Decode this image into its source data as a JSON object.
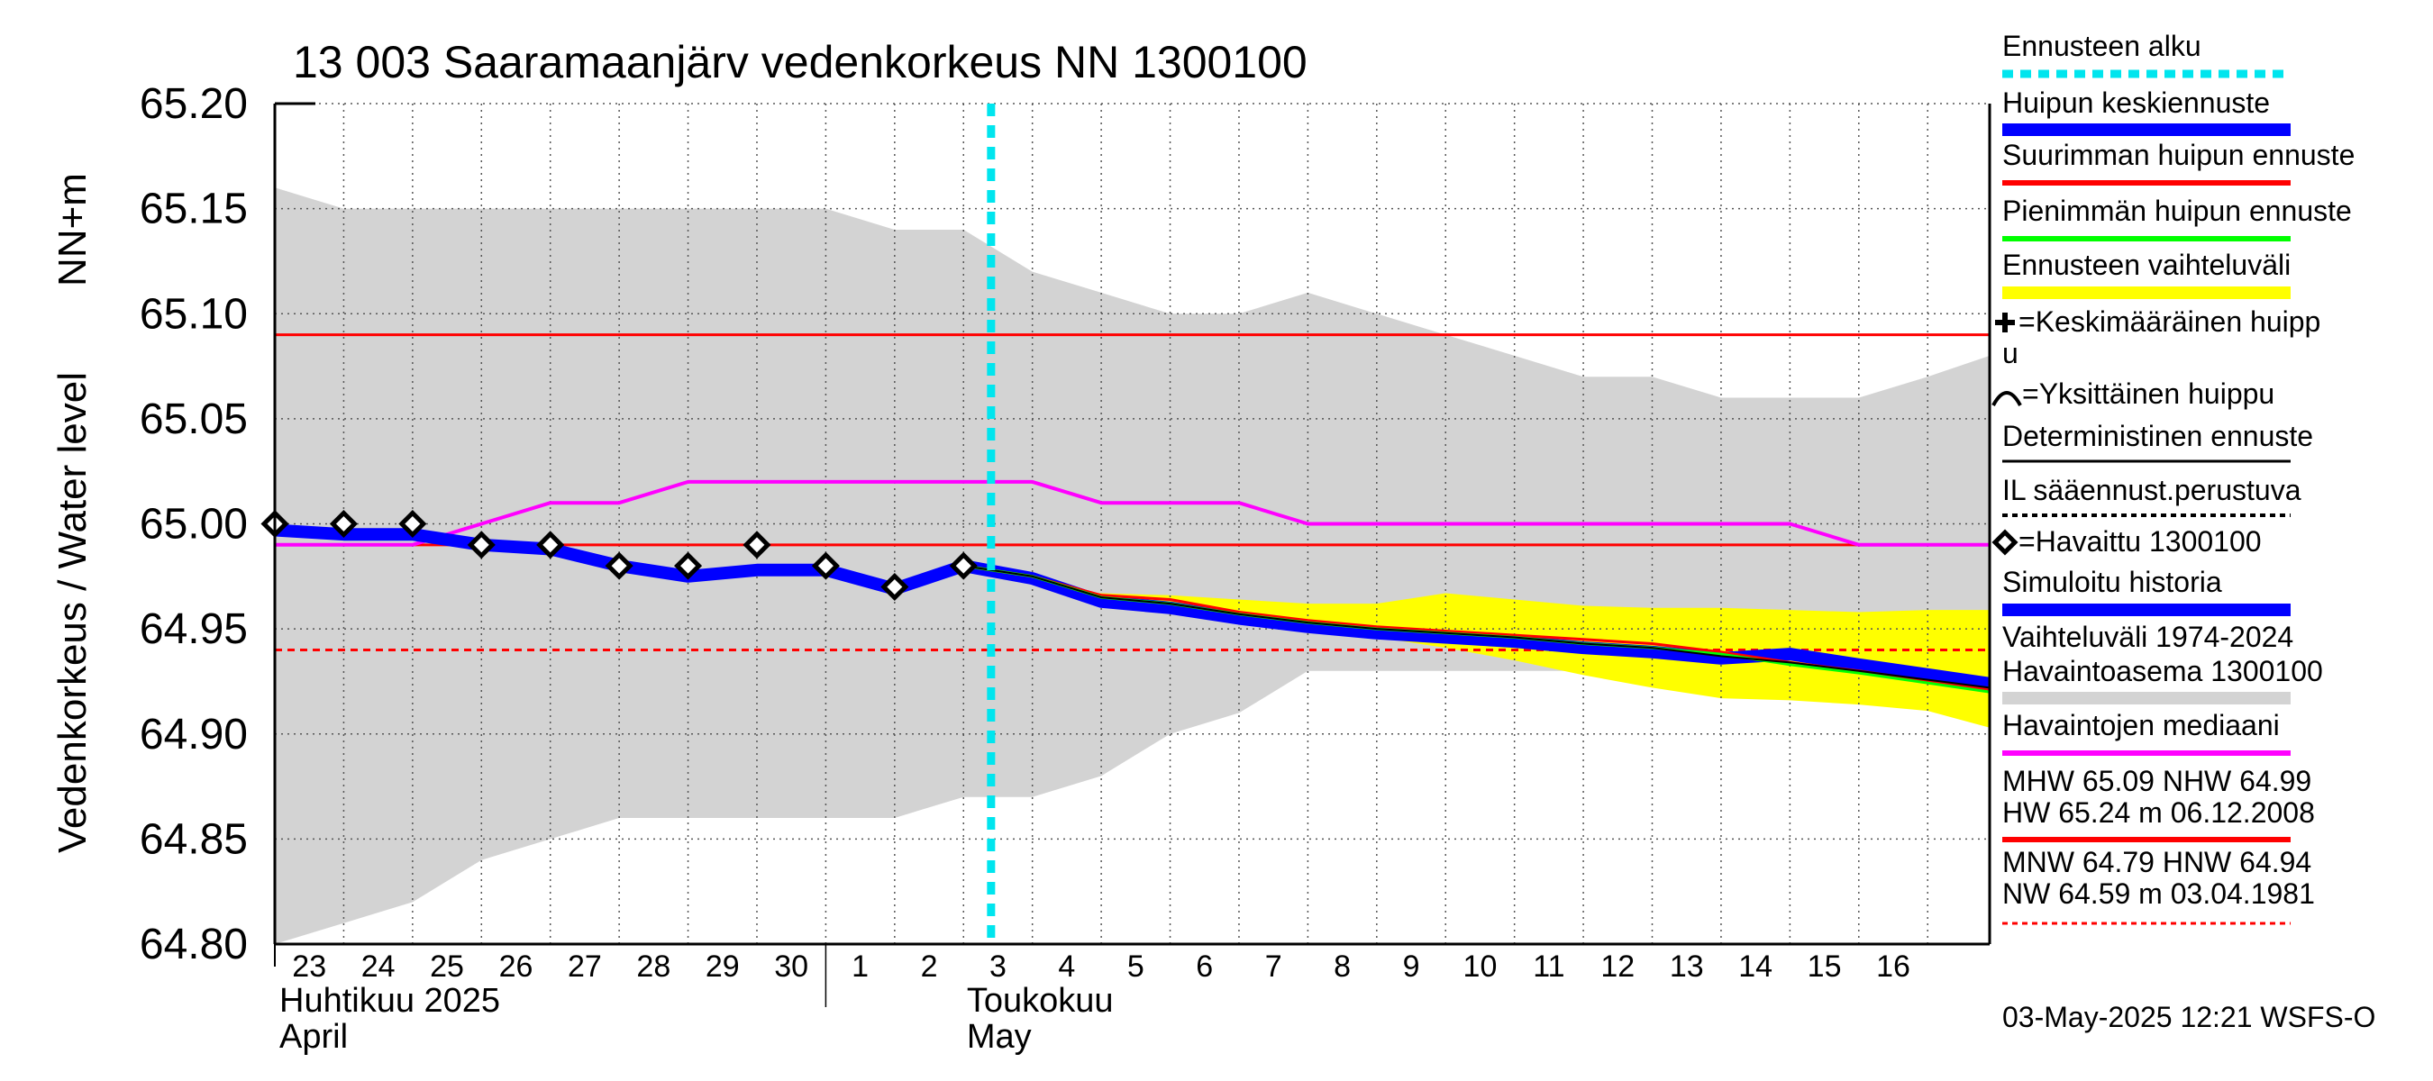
{
  "chart_data": {
    "type": "line",
    "title": "13 003 Saaramaanjärv vedenkorkeus NN 1300100",
    "ylabel_main": "Vedenkorkeus / Water level",
    "ylabel_unit": "NN+m",
    "ylim": [
      64.8,
      65.2
    ],
    "y_ticks": [
      "65.20",
      "65.15",
      "65.10",
      "65.05",
      "65.00",
      "64.95",
      "64.90",
      "64.85",
      "64.80"
    ],
    "x_start_day": 23,
    "x_end_day": 47,
    "x_day_labels": [
      "23",
      "24",
      "25",
      "26",
      "27",
      "28",
      "29",
      "30",
      "1",
      "2",
      "3",
      "4",
      "5",
      "6",
      "7",
      "8",
      "9",
      "10",
      "11",
      "12",
      "13",
      "14",
      "15",
      "16"
    ],
    "month_labels": [
      {
        "fi": "Huhtikuu  2025",
        "en": "April",
        "day": 23
      },
      {
        "fi": "Toukokuu",
        "en": "May",
        "day": 32
      }
    ],
    "forecast_start_day": 33.4,
    "range_band": {
      "upper": [
        [
          23,
          65.16
        ],
        [
          24,
          65.15
        ],
        [
          25,
          65.15
        ],
        [
          26,
          65.15
        ],
        [
          27,
          65.15
        ],
        [
          28,
          65.15
        ],
        [
          29,
          65.15
        ],
        [
          30,
          65.15
        ],
        [
          31,
          65.15
        ],
        [
          32,
          65.14
        ],
        [
          33,
          65.14
        ],
        [
          34,
          65.12
        ],
        [
          35,
          65.11
        ],
        [
          36,
          65.1
        ],
        [
          37,
          65.1
        ],
        [
          38,
          65.11
        ],
        [
          39,
          65.1
        ],
        [
          40,
          65.09
        ],
        [
          41,
          65.08
        ],
        [
          42,
          65.07
        ],
        [
          43,
          65.07
        ],
        [
          44,
          65.06
        ],
        [
          45,
          65.06
        ],
        [
          46,
          65.06
        ],
        [
          47,
          65.07
        ],
        [
          47.9,
          65.08
        ]
      ],
      "lower": [
        [
          23,
          64.8
        ],
        [
          24,
          64.81
        ],
        [
          25,
          64.82
        ],
        [
          26,
          64.84
        ],
        [
          27,
          64.85
        ],
        [
          28,
          64.86
        ],
        [
          29,
          64.86
        ],
        [
          30,
          64.86
        ],
        [
          31,
          64.86
        ],
        [
          32,
          64.86
        ],
        [
          33,
          64.87
        ],
        [
          34,
          64.87
        ],
        [
          35,
          64.88
        ],
        [
          36,
          64.9
        ],
        [
          37,
          64.91
        ],
        [
          38,
          64.93
        ],
        [
          39,
          64.93
        ],
        [
          40,
          64.93
        ],
        [
          41,
          64.93
        ],
        [
          42,
          64.93
        ],
        [
          43,
          64.93
        ],
        [
          44,
          64.93
        ],
        [
          45,
          64.93
        ],
        [
          46,
          64.93
        ],
        [
          47,
          64.93
        ],
        [
          47.9,
          64.93
        ]
      ]
    },
    "forecast_band": {
      "upper": [
        [
          34.5,
          64.968
        ],
        [
          35,
          64.967
        ],
        [
          36,
          64.966
        ],
        [
          37,
          64.964
        ],
        [
          38,
          64.962
        ],
        [
          39,
          64.962
        ],
        [
          40,
          64.967
        ],
        [
          41,
          64.964
        ],
        [
          42,
          64.961
        ],
        [
          43,
          64.96
        ],
        [
          44,
          64.96
        ],
        [
          45,
          64.959
        ],
        [
          46,
          64.958
        ],
        [
          47,
          64.959
        ],
        [
          47.9,
          64.959
        ]
      ],
      "lower": [
        [
          34.5,
          64.968
        ],
        [
          35,
          64.962
        ],
        [
          36,
          64.957
        ],
        [
          37,
          64.953
        ],
        [
          38,
          64.948
        ],
        [
          39,
          64.946
        ],
        [
          40,
          64.941
        ],
        [
          41,
          64.935
        ],
        [
          42,
          64.928
        ],
        [
          43,
          64.922
        ],
        [
          44,
          64.917
        ],
        [
          45,
          64.916
        ],
        [
          46,
          64.914
        ],
        [
          47,
          64.911
        ],
        [
          47.9,
          64.903
        ]
      ]
    },
    "series": [
      {
        "name": "Havaintojen mediaani",
        "color": "#ff00ff",
        "points": [
          [
            23,
            64.99
          ],
          [
            25,
            64.99
          ],
          [
            26,
            65.0
          ],
          [
            27,
            65.01
          ],
          [
            28,
            65.01
          ],
          [
            29,
            65.02
          ],
          [
            30,
            65.02
          ],
          [
            31,
            65.02
          ],
          [
            32,
            65.02
          ],
          [
            33,
            65.02
          ],
          [
            34,
            65.02
          ],
          [
            35,
            65.01
          ],
          [
            36,
            65.01
          ],
          [
            37,
            65.01
          ],
          [
            38,
            65.0
          ],
          [
            39,
            65.0
          ],
          [
            40,
            65.0
          ],
          [
            41,
            65.0
          ],
          [
            42,
            65.0
          ],
          [
            43,
            65.0
          ],
          [
            44,
            65.0
          ],
          [
            45,
            65.0
          ],
          [
            46,
            64.99
          ],
          [
            47,
            64.99
          ],
          [
            47.9,
            64.99
          ]
        ]
      },
      {
        "name": "Simuloitu historia",
        "color": "#0000ff",
        "points": [
          [
            23,
            64.997
          ],
          [
            24,
            64.995
          ],
          [
            25,
            64.995
          ],
          [
            26,
            64.99
          ],
          [
            27,
            64.988
          ],
          [
            28,
            64.98
          ],
          [
            29,
            64.975
          ],
          [
            30,
            64.978
          ],
          [
            31,
            64.978
          ],
          [
            32,
            64.969
          ],
          [
            33,
            64.98
          ]
        ]
      },
      {
        "name": "Huipun keskiennuste",
        "color": "#0000ff",
        "points": [
          [
            33,
            64.98
          ],
          [
            34,
            64.974
          ],
          [
            35,
            64.963
          ],
          [
            36,
            64.96
          ],
          [
            37,
            64.955
          ],
          [
            38,
            64.951
          ],
          [
            39,
            64.948
          ],
          [
            40,
            64.946
          ],
          [
            41,
            64.944
          ],
          [
            42,
            64.941
          ],
          [
            43,
            64.939
          ],
          [
            44,
            64.936
          ],
          [
            45,
            64.938
          ],
          [
            46,
            64.933
          ],
          [
            47.9,
            64.924
          ]
        ]
      },
      {
        "name": "Suurimman huipun ennuste",
        "color": "#ff0000",
        "points": [
          [
            33,
            64.98
          ],
          [
            34,
            64.975
          ],
          [
            35,
            64.966
          ],
          [
            36,
            64.964
          ],
          [
            37,
            64.958
          ],
          [
            38,
            64.954
          ],
          [
            39,
            64.951
          ],
          [
            40,
            64.949
          ],
          [
            41,
            64.947
          ],
          [
            42,
            64.945
          ],
          [
            43,
            64.943
          ],
          [
            44,
            64.939
          ],
          [
            45,
            64.934
          ],
          [
            46,
            64.93
          ],
          [
            47.9,
            64.921
          ]
        ]
      },
      {
        "name": "Pienimmän huipun ennuste",
        "color": "#00ff00",
        "points": [
          [
            33,
            64.98
          ],
          [
            34,
            64.975
          ],
          [
            35,
            64.965
          ],
          [
            36,
            64.962
          ],
          [
            37,
            64.957
          ],
          [
            38,
            64.953
          ],
          [
            39,
            64.95
          ],
          [
            40,
            64.948
          ],
          [
            41,
            64.946
          ],
          [
            42,
            64.943
          ],
          [
            43,
            64.941
          ],
          [
            44,
            64.938
          ],
          [
            45,
            64.933
          ],
          [
            46,
            64.929
          ],
          [
            47.9,
            64.92
          ]
        ]
      },
      {
        "name": "Deterministinen ennuste",
        "color": "#000000",
        "points": [
          [
            33,
            64.98
          ],
          [
            34,
            64.975
          ],
          [
            35,
            64.965
          ],
          [
            36,
            64.962
          ],
          [
            37,
            64.957
          ],
          [
            38,
            64.953
          ],
          [
            39,
            64.95
          ],
          [
            40,
            64.948
          ],
          [
            41,
            64.946
          ],
          [
            42,
            64.943
          ],
          [
            43,
            64.941
          ],
          [
            44,
            64.937
          ],
          [
            45,
            64.934
          ],
          [
            46,
            64.93
          ],
          [
            47.9,
            64.922
          ]
        ]
      }
    ],
    "observed": {
      "name": "Havaittu 1300100",
      "points": [
        [
          23,
          65.0
        ],
        [
          24,
          65.0
        ],
        [
          25,
          65.0
        ],
        [
          26,
          64.99
        ],
        [
          27,
          64.99
        ],
        [
          28,
          64.98
        ],
        [
          29,
          64.98
        ],
        [
          30,
          64.99
        ],
        [
          31,
          64.98
        ],
        [
          32,
          64.97
        ],
        [
          33,
          64.98
        ]
      ]
    },
    "hlines": [
      {
        "name": "MHW",
        "value": 65.09,
        "color": "#ff0000",
        "style": "solid"
      },
      {
        "name": "NHW",
        "value": 64.99,
        "color": "#ff0000",
        "style": "solid"
      },
      {
        "name": "HNW",
        "value": 64.94,
        "color": "#ff0000",
        "style": "dashed"
      }
    ],
    "legend": {
      "position": "right",
      "items": [
        {
          "label": "Ennusteen alku",
          "color": "#00e5ee",
          "line": "dashed"
        },
        {
          "label": "Huipun keskiennuste",
          "color": "#0000ff",
          "line": "thick"
        },
        {
          "label": "Suurimman huipun ennuste",
          "color": "#ff0000",
          "line": "solid"
        },
        {
          "label": "Pienimmän huipun ennuste",
          "color": "#00ff00",
          "line": "solid"
        },
        {
          "label": "Ennusteen vaihteluväli",
          "color": "#ffff00",
          "line": "thick"
        },
        {
          "label1": "=Keskimääräinen huipp",
          "label2": "u",
          "marker": "plus"
        },
        {
          "label": "=Yksittäinen huippu",
          "marker": "arc"
        },
        {
          "label": "Deterministinen ennuste",
          "color": "#000000",
          "line": "solid"
        },
        {
          "label": "IL sääennust.perustuva",
          "color": "#000000",
          "line": "dotted"
        },
        {
          "label": "=Havaittu 1300100",
          "marker": "diamond"
        },
        {
          "label": "Simuloitu historia",
          "color": "#0000ff",
          "line": "thick"
        },
        {
          "label1": "Vaihteluväli 1974-2024",
          "label2": " Havaintoasema 1300100",
          "color": "#d3d3d3",
          "line": "thick"
        },
        {
          "label": "Havaintojen mediaani",
          "color": "#ff00ff",
          "line": "solid"
        },
        {
          "label1": "MHW  65.09 NHW  64.99",
          "label2": "HW  65.24 m 06.12.2008",
          "color": "#ff0000",
          "line": "solid"
        },
        {
          "label1": "MNW  64.79 HNW  64.94",
          "label2": "NW  64.59 m 03.04.1981",
          "color": "#ff0000",
          "line": "dashed"
        }
      ]
    },
    "footer": "03-May-2025 12:21 WSFS-O",
    "grid": true
  }
}
